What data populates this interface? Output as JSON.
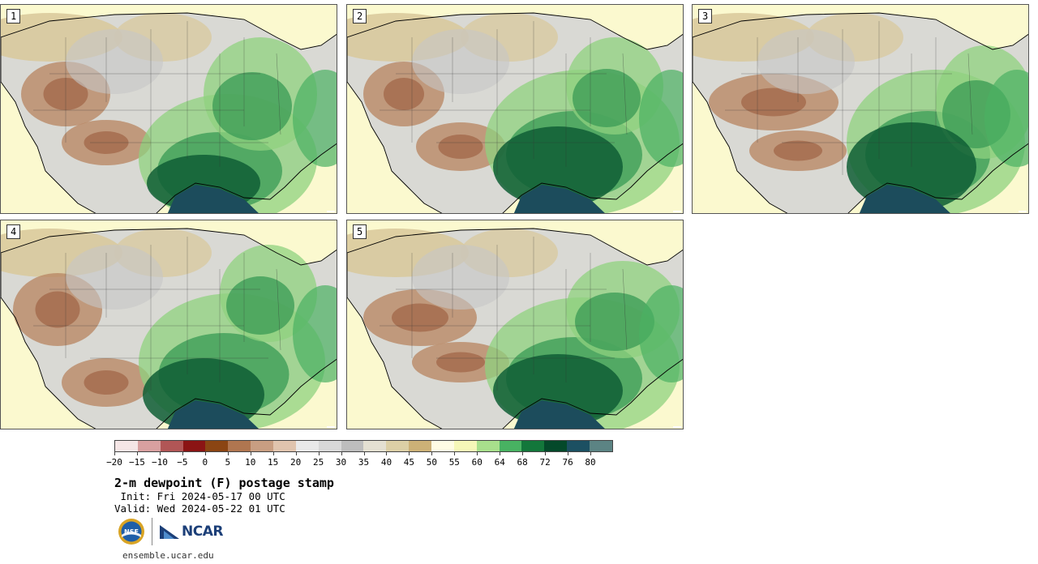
{
  "panels": [
    {
      "label": "1"
    },
    {
      "label": "2"
    },
    {
      "label": "3"
    },
    {
      "label": "4"
    },
    {
      "label": "5"
    }
  ],
  "colorbar": {
    "colors": [
      "#f5e6e6",
      "#d8a0a0",
      "#b15656",
      "#8b1414",
      "#8b4513",
      "#b07650",
      "#c89e82",
      "#e0c4ae",
      "#e9e9e9",
      "#d8d8d8",
      "#bdbdbd",
      "#e4e0d2",
      "#dccfa6",
      "#ccb177",
      "#fffce4",
      "#f6f7b8",
      "#a8df8c",
      "#48b262",
      "#13773b",
      "#04492a",
      "#1c5062",
      "#5c8484"
    ],
    "labels": [
      "−20",
      "−15",
      "−10",
      "−5",
      "0",
      "5",
      "10",
      "15",
      "20",
      "25",
      "30",
      "35",
      "40",
      "45",
      "50",
      "55",
      "60",
      "64",
      "68",
      "72",
      "76",
      "80"
    ]
  },
  "title": "2-m dewpoint (F) postage stamp",
  "init": " Init: Fri 2024-05-17 00 UTC",
  "valid": "Valid: Wed 2024-05-22 01 UTC",
  "logos": {
    "nsf_text": "NSF",
    "ncar_text": "NCAR"
  },
  "url": "ensemble.ucar.edu"
}
